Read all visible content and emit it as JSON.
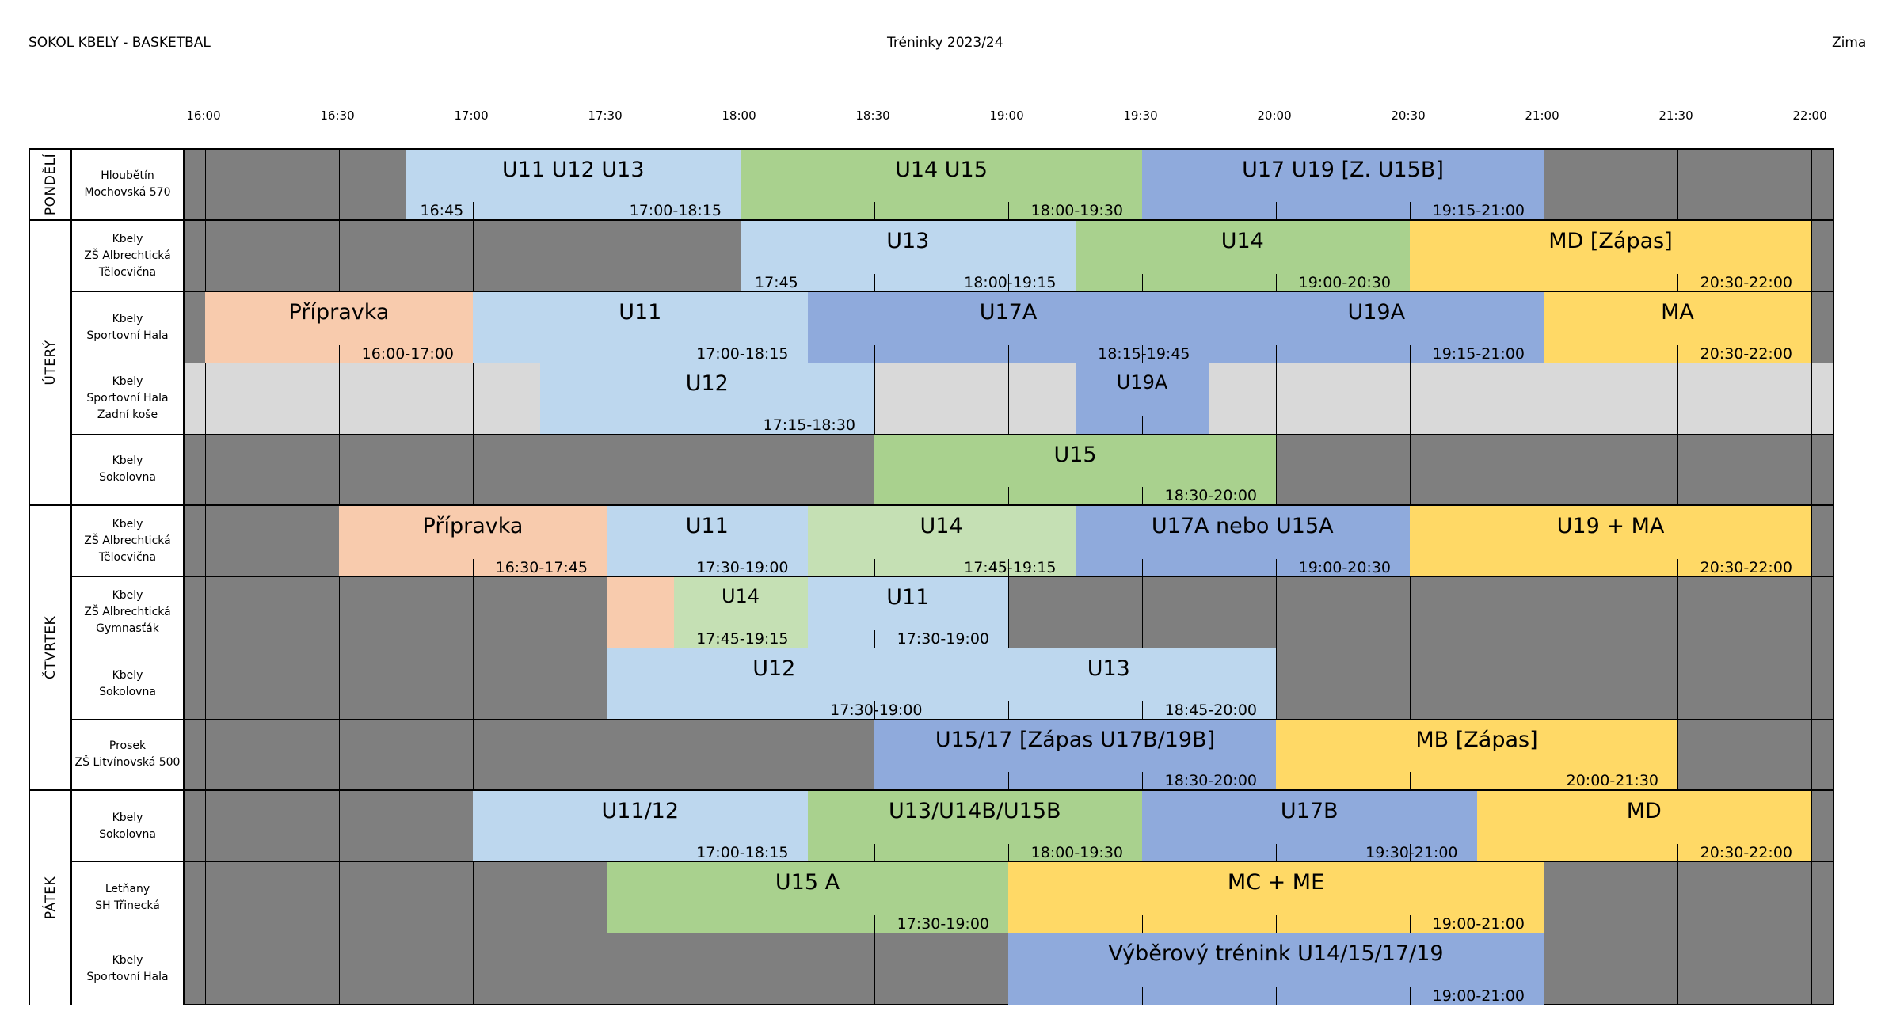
{
  "header": {
    "left": "SOKOL KBELY - BASKETBAL",
    "center": "Tréninky 2023/24",
    "right": "Zima"
  },
  "times": [
    "16:00",
    "16:30",
    "17:00",
    "17:30",
    "18:00",
    "18:30",
    "19:00",
    "19:30",
    "20:00",
    "20:30",
    "21:00",
    "21:30",
    "22:00"
  ],
  "days": [
    {
      "label": "PONDĚLÍ",
      "rows": 1
    },
    {
      "label": "ÚTERÝ",
      "rows": 4
    },
    {
      "label": "ČTVRTEK",
      "rows": 4
    },
    {
      "label": "PÁTEK",
      "rows": 3
    }
  ],
  "colors": {
    "light_blue": "#bdd7ee",
    "green": "#a9d18e",
    "light_green": "#c5e0b4",
    "blue": "#8faadc",
    "yellow": "#ffd966",
    "orange": "#f8cbad",
    "empty_dark": "#7f7f7f",
    "empty_light": "#d9d9d9"
  },
  "rows": [
    {
      "location": [
        "Hloubětín",
        "Mochovská 570"
      ],
      "day_end": true,
      "light": false,
      "blocks": [
        {
          "title": "U11 U12 U13",
          "time": "17:00-18:15",
          "start_label": "16:45",
          "from": 16.75,
          "to": 18.0,
          "color": "light_blue"
        },
        {
          "title": "U14 U15",
          "time": "18:00-19:30",
          "from": 18.0,
          "to": 19.5,
          "color": "green"
        },
        {
          "title": "U17 U19 [Z. U15B]",
          "time": "19:15-21:00",
          "from": 19.5,
          "to": 21.0,
          "color": "blue"
        }
      ]
    },
    {
      "location": [
        "Kbely",
        "ZŠ Albrechtická",
        "Tělocvična"
      ],
      "day_end": false,
      "light": false,
      "blocks": [
        {
          "title": "U13",
          "time": "18:00-19:15",
          "start_label": "17:45",
          "from": 18.0,
          "to": 19.25,
          "color": "light_blue"
        },
        {
          "title": "U14",
          "time": "19:00-20:30",
          "from": 19.25,
          "to": 20.5,
          "color": "green"
        },
        {
          "title": "MD [Zápas]",
          "time": "20:30-22:00",
          "from": 20.5,
          "to": 22.0,
          "color": "yellow"
        }
      ]
    },
    {
      "location": [
        "Kbely",
        "Sportovní Hala"
      ],
      "day_end": false,
      "light": false,
      "blocks": [
        {
          "title": "Přípravka",
          "time": "16:00-17:00",
          "from": 16.0,
          "to": 17.0,
          "color": "orange"
        },
        {
          "title": "U11",
          "time": "17:00-18:15",
          "from": 17.0,
          "to": 18.25,
          "color": "light_blue"
        },
        {
          "title": "U17A",
          "time": "18:15-19:45",
          "from": 18.25,
          "to": 19.75,
          "color": "blue"
        },
        {
          "title": "U19A",
          "time": "19:15-21:00",
          "from": 19.75,
          "to": 21.0,
          "color": "blue"
        },
        {
          "title": "MA",
          "time": "20:30-22:00",
          "from": 21.0,
          "to": 22.0,
          "color": "yellow"
        }
      ]
    },
    {
      "location": [
        "Kbely",
        "Sportovní Hala",
        "Zadní koše"
      ],
      "day_end": false,
      "light": true,
      "blocks": [
        {
          "title": "U12",
          "time": "17:15-18:30",
          "from": 17.25,
          "to": 18.5,
          "color": "light_blue"
        },
        {
          "title": "U19A",
          "time": "",
          "from": 19.25,
          "to": 19.75,
          "color": "blue"
        }
      ]
    },
    {
      "location": [
        "Kbely",
        "Sokolovna"
      ],
      "day_end": true,
      "light": false,
      "blocks": [
        {
          "title": "U15",
          "time": "18:30-20:00",
          "from": 18.5,
          "to": 20.0,
          "color": "green"
        }
      ]
    },
    {
      "location": [
        "Kbely",
        "ZŠ Albrechtická",
        "Tělocvična"
      ],
      "day_end": false,
      "light": false,
      "blocks": [
        {
          "title": "Přípravka",
          "time": "16:30-17:45",
          "from": 16.5,
          "to": 17.5,
          "color": "orange"
        },
        {
          "title": "U11",
          "time": "17:30-19:00",
          "from": 17.5,
          "to": 18.25,
          "color": "light_blue"
        },
        {
          "title": "U14",
          "time": "17:45-19:15",
          "from": 18.25,
          "to": 19.25,
          "color": "light_green"
        },
        {
          "title": "U17A nebo U15A",
          "time": "19:00-20:30",
          "from": 19.25,
          "to": 20.5,
          "color": "blue"
        },
        {
          "title": "U19 + MA",
          "time": "20:30-22:00",
          "from": 20.5,
          "to": 22.0,
          "color": "yellow"
        }
      ]
    },
    {
      "location": [
        "Kbely",
        "ZŠ Albrechtická",
        "Gymnasťák"
      ],
      "day_end": false,
      "light": false,
      "blocks": [
        {
          "title": "",
          "time": "",
          "from": 17.5,
          "to": 17.75,
          "color": "orange"
        },
        {
          "title": "U14",
          "time": "17:45-19:15",
          "from": 17.75,
          "to": 18.25,
          "color": "light_green"
        },
        {
          "title": "U11",
          "time": "17:30-19:00",
          "from": 18.25,
          "to": 19.0,
          "color": "light_blue"
        }
      ]
    },
    {
      "location": [
        "Kbely",
        "Sokolovna"
      ],
      "day_end": false,
      "light": false,
      "blocks": [
        {
          "title": "U12",
          "time": "17:30-19:00",
          "from": 17.5,
          "to": 18.75,
          "color": "light_blue"
        },
        {
          "title": "U13",
          "time": "18:45-20:00",
          "from": 18.75,
          "to": 20.0,
          "color": "light_blue"
        }
      ]
    },
    {
      "location": [
        "Prosek",
        "ZŠ Litvínovská 500"
      ],
      "day_end": true,
      "light": false,
      "blocks": [
        {
          "title": "U15/17 [Zápas U17B/19B]",
          "time": "18:30-20:00",
          "from": 18.5,
          "to": 20.0,
          "color": "blue"
        },
        {
          "title": "MB [Zápas]",
          "time": "20:00-21:30",
          "from": 20.0,
          "to": 21.5,
          "color": "yellow"
        }
      ]
    },
    {
      "location": [
        "Kbely",
        "Sokolovna"
      ],
      "day_end": false,
      "light": false,
      "blocks": [
        {
          "title": "U11/12",
          "time": "17:00-18:15",
          "from": 17.0,
          "to": 18.25,
          "color": "light_blue"
        },
        {
          "title": "U13/U14B/U15B",
          "time": "18:00-19:30",
          "from": 18.25,
          "to": 19.5,
          "color": "green"
        },
        {
          "title": "U17B",
          "time": "19:30-21:00",
          "from": 19.5,
          "to": 20.75,
          "color": "blue"
        },
        {
          "title": "MD",
          "time": "20:30-22:00",
          "from": 20.75,
          "to": 22.0,
          "color": "yellow"
        }
      ]
    },
    {
      "location": [
        "Letňany",
        "SH Třinecká"
      ],
      "day_end": false,
      "light": false,
      "blocks": [
        {
          "title": "U15 A",
          "time": "17:30-19:00",
          "from": 17.5,
          "to": 19.0,
          "color": "green"
        },
        {
          "title": "MC + ME",
          "time": "19:00-21:00",
          "from": 19.0,
          "to": 21.0,
          "color": "yellow"
        }
      ]
    },
    {
      "location": [
        "Kbely",
        "Sportovní Hala"
      ],
      "day_end": true,
      "light": false,
      "blocks": [
        {
          "title": "Výběrový trénink U14/15/17/19",
          "time": "19:00-21:00",
          "from": 19.0,
          "to": 21.0,
          "color": "blue"
        }
      ]
    }
  ]
}
